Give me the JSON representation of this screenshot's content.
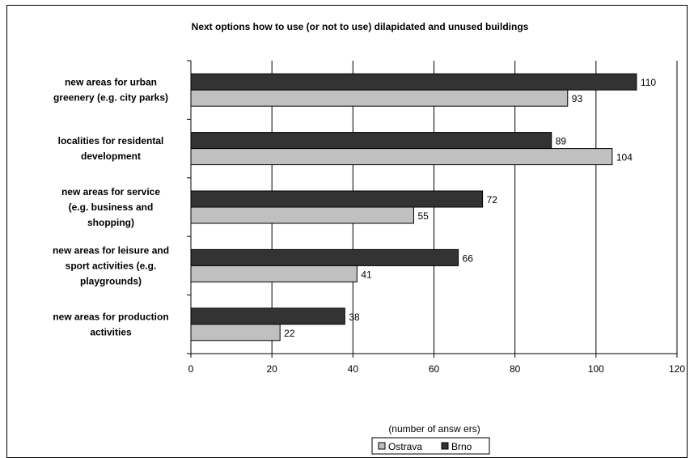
{
  "chart_data": {
    "type": "bar",
    "orientation": "horizontal",
    "title": "Next options how to use (or not to use) dilapidated and unused buildings",
    "xlabel": "(number of answ ers)",
    "xlim": [
      0,
      120
    ],
    "xticks": [
      "0",
      "20",
      "40",
      "60",
      "80",
      "100",
      "120"
    ],
    "grid": true,
    "legend_position": "bottom",
    "categories": [
      [
        "new areas for urban",
        "greenery (e.g. city parks)"
      ],
      [
        "localities for residental",
        "development"
      ],
      [
        "new areas for service",
        "(e.g. business and",
        "shopping)"
      ],
      [
        "new areas for leisure and",
        "sport activities (e.g.",
        "playgrounds)"
      ],
      [
        "new areas for production",
        "activities"
      ]
    ],
    "series": [
      {
        "name": "Brno",
        "color": "#333333",
        "values": [
          110,
          89,
          72,
          66,
          38
        ]
      },
      {
        "name": "Ostrava",
        "color": "#c0c0c0",
        "values": [
          93,
          104,
          55,
          41,
          22
        ]
      }
    ],
    "legend": [
      "Ostrava",
      "Brno"
    ]
  }
}
